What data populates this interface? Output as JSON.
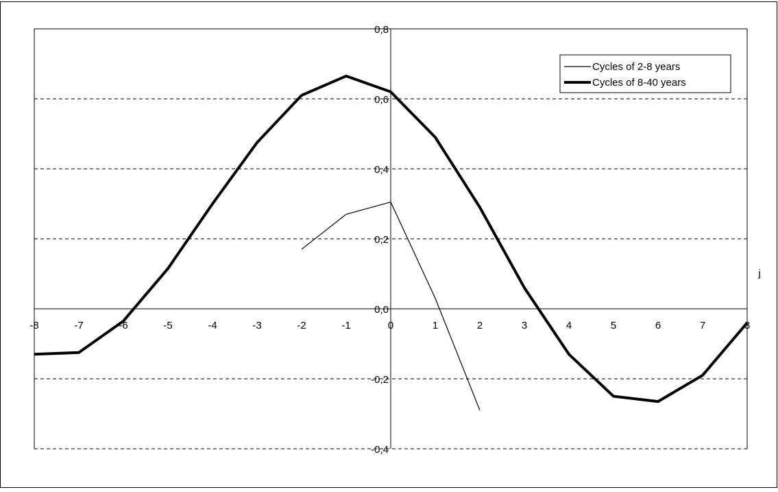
{
  "chart_data": {
    "type": "line",
    "title": "",
    "xlabel": "j",
    "ylabel": "",
    "x": [
      -8,
      -7,
      -6,
      -5,
      -4,
      -3,
      -2,
      -1,
      0,
      1,
      2,
      3,
      4,
      5,
      6,
      7,
      8
    ],
    "xlim": [
      -8,
      8
    ],
    "ylim": [
      -0.4,
      0.8
    ],
    "x_ticks": [
      -8,
      -7,
      -6,
      -5,
      -4,
      -3,
      -2,
      -1,
      0,
      1,
      2,
      3,
      4,
      5,
      6,
      7,
      8
    ],
    "x_tick_labels": [
      "-8",
      "-7",
      "-6",
      "-5",
      "-4",
      "-3",
      "-2",
      "-1",
      "0",
      "1",
      "2",
      "3",
      "4",
      "5",
      "6",
      "7",
      "8"
    ],
    "y_ticks": [
      0.8,
      0.6,
      0.4,
      0.2,
      0.0,
      -0.2,
      -0.4
    ],
    "y_tick_labels": [
      "0,8",
      "0,6",
      "0,4",
      "0,2",
      "0,0",
      "-0,2",
      "-0,4"
    ],
    "grid": "horizontal dashed",
    "legend_position": "top-right",
    "series": [
      {
        "name": "Cycles of 2-8 years",
        "style": "thin",
        "color": "#000000",
        "x": [
          -2,
          -1,
          0,
          1,
          2
        ],
        "y": [
          0.17,
          0.27,
          0.305,
          0.03,
          -0.29
        ]
      },
      {
        "name": "Cycles of 8-40 years",
        "style": "thick",
        "color": "#000000",
        "x": [
          -8,
          -7,
          -6,
          -5,
          -4,
          -3,
          -2,
          -1,
          0,
          1,
          2,
          3,
          4,
          5,
          6,
          7,
          8
        ],
        "y": [
          -0.13,
          -0.125,
          -0.035,
          0.115,
          0.3,
          0.475,
          0.61,
          0.665,
          0.62,
          0.49,
          0.29,
          0.06,
          -0.13,
          -0.25,
          -0.265,
          -0.19,
          -0.04
        ]
      }
    ]
  }
}
